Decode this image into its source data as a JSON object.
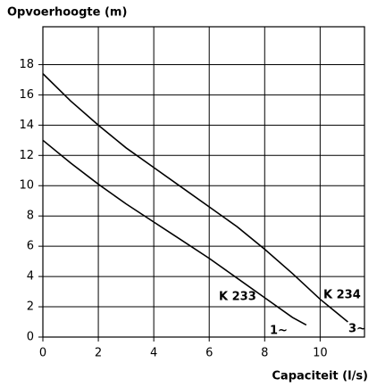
{
  "chart_data": {
    "type": "line",
    "y_label": "Opvoerhoogte (m)",
    "x_label": "Capaciteit (l/s)",
    "xlim": [
      0,
      11.6
    ],
    "xticks": [
      0,
      2,
      4,
      6,
      8,
      10
    ],
    "ylim": [
      0,
      20.5
    ],
    "yticks": [
      0,
      2,
      4,
      6,
      8,
      10,
      12,
      14,
      16,
      18
    ],
    "grid": true,
    "series": [
      {
        "name": "K 233",
        "color": "#000000",
        "x": [
          0,
          1,
          2,
          3,
          4,
          5,
          6,
          7,
          8,
          9,
          9.5
        ],
        "values": [
          13,
          11.5,
          10.1,
          8.8,
          7.6,
          6.4,
          5.2,
          3.9,
          2.6,
          1.3,
          0.8
        ]
      },
      {
        "name": "K 234",
        "color": "#000000",
        "x": [
          0,
          1,
          2,
          3,
          4,
          5,
          6,
          7,
          8,
          9,
          10,
          11
        ],
        "values": [
          17.4,
          15.6,
          14,
          12.5,
          11.2,
          9.9,
          8.6,
          7.3,
          5.8,
          4.2,
          2.5,
          1
        ]
      }
    ],
    "annotations": [
      "1~",
      "3~"
    ]
  }
}
